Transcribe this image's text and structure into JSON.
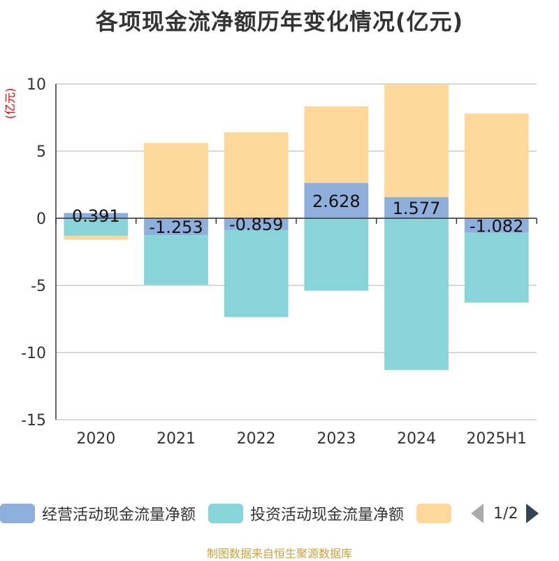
{
  "chart_data": {
    "type": "bar",
    "stacked": true,
    "title": "各项现金流净额历年变化情况(亿元)",
    "ylabel": "(亿元)",
    "ylim": [
      -15,
      10
    ],
    "yticks": [
      10,
      5,
      0,
      -5,
      -10,
      -15
    ],
    "categories": [
      "2020",
      "2021",
      "2022",
      "2023",
      "2024",
      "2025H1"
    ],
    "grid": true,
    "legend_position": "bottom",
    "series": [
      {
        "name": "经营活动现金流量净额",
        "color": "#8eaedc",
        "values": [
          0.391,
          -1.253,
          -0.859,
          2.628,
          1.577,
          -1.082
        ],
        "show_labels": true
      },
      {
        "name": "投资活动现金流量净额",
        "color": "#88d4d8",
        "values": [
          -1.3,
          -3.7,
          -6.5,
          -5.4,
          -11.3,
          -5.2
        ],
        "show_labels": false
      },
      {
        "name": "",
        "color": "#fdd89a",
        "values": [
          -0.3,
          5.6,
          6.4,
          5.7,
          8.4,
          7.8
        ],
        "show_labels": false
      }
    ]
  },
  "legend": {
    "page_indicator": "1/2"
  },
  "source_text": "制图数据来自恒生聚源数据库"
}
